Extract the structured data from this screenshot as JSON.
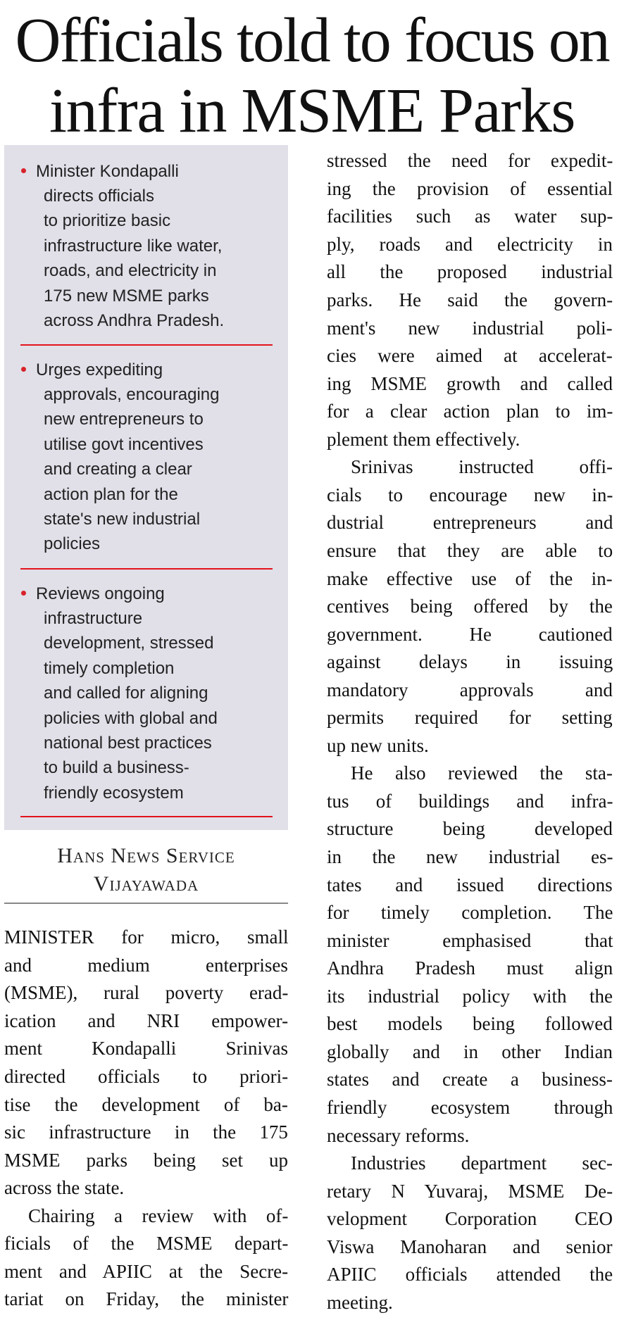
{
  "headline": {
    "lines": [
      "Officials told to focus on",
      "infra in MSME Parks"
    ]
  },
  "highlights": {
    "accent_color": "#e3141c",
    "background_color": "#e1dfe8",
    "bullets": [
      {
        "lines": [
          "Minister Kondapalli",
          "directs officials",
          "to prioritize basic",
          "infrastructure like water,",
          "roads, and electricity in",
          "175 new MSME parks",
          "across Andhra Pradesh."
        ]
      },
      {
        "lines": [
          "Urges expediting",
          "approvals, encouraging",
          "new entrepreneurs to",
          "utilise govt incentives",
          "and creating a clear",
          "action plan for the",
          "state's new industrial",
          "policies"
        ]
      },
      {
        "lines": [
          "Reviews ongoing",
          "infrastructure",
          "development, stressed",
          "timely completion",
          "and called for aligning",
          "policies with global and",
          "national best practices",
          "to build a business-",
          "friendly ecosystem"
        ]
      }
    ]
  },
  "byline": {
    "agency": "Hans News Service",
    "place": "Vijayawada"
  },
  "body": {
    "left_column": [
      {
        "lines": [
          "MINISTER for micro, small",
          "and medium enterprises",
          "(MSME), rural poverty erad-",
          "ication and NRI empower-",
          "ment Kondapalli Srinivas",
          "directed officials to priori-",
          "tise the development of ba-",
          "sic infrastructure in the 175",
          "MSME parks being set up",
          "across the state."
        ]
      },
      {
        "lines": [
          "Chairing a review with of-",
          "ficials of the MSME depart-",
          "ment and APIIC at the Secre-",
          "tariat on Friday, the minister"
        ],
        "continues": true
      }
    ],
    "right_column": [
      {
        "lines": [
          "stressed the need for expedit-",
          "ing the provision of essential",
          "facilities such as water sup-",
          "ply, roads and electricity in",
          "all the proposed industrial",
          "parks. He said the govern-",
          "ment's new industrial poli-",
          "cies were aimed at accelerat-",
          "ing MSME growth and called",
          "for a clear action plan to im-",
          "plement them effectively."
        ],
        "continuation": true
      },
      {
        "lines": [
          "Srinivas instructed offi-",
          "cials to encourage new in-",
          "dustrial entrepreneurs and",
          "ensure that they are able to",
          "make effective use of the in-",
          "centives being offered by the",
          "government. He cautioned",
          "against delays in issuing",
          "mandatory approvals and",
          "permits required for setting",
          "up new units."
        ]
      },
      {
        "lines": [
          "He also reviewed the sta-",
          "tus of buildings and infra-",
          "structure being developed",
          "in the new industrial es-",
          "tates and issued directions",
          "for timely completion. The",
          "minister emphasised that",
          "Andhra Pradesh must align",
          "its industrial policy with the",
          "best models being followed",
          "globally and in other Indian",
          "states and create a business-",
          "friendly ecosystem through",
          "necessary reforms."
        ]
      },
      {
        "lines": [
          "Industries department sec-",
          "retary N Yuvaraj, MSME De-",
          "velopment Corporation CEO",
          "Viswa Manoharan and senior",
          "APIIC officials attended the",
          "meeting."
        ]
      }
    ]
  }
}
